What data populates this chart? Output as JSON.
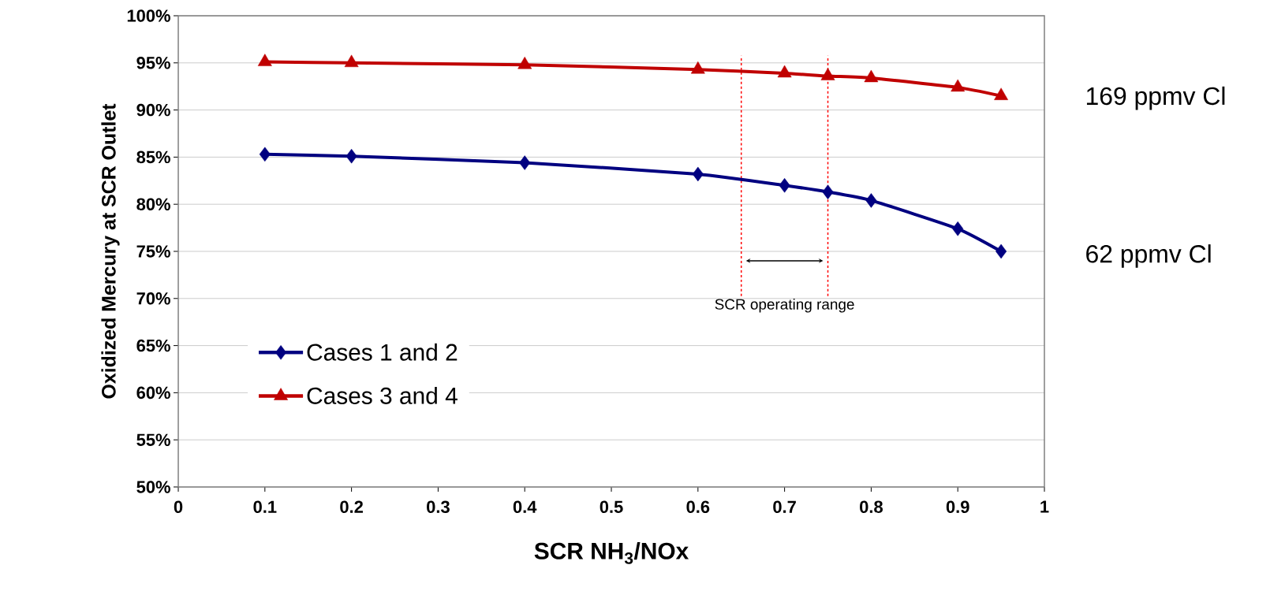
{
  "chart_data": {
    "type": "line",
    "xlabel": "SCR NH$_{3}$/NOx",
    "ylabel": "Oxidized Mercury at SCR Outlet",
    "x": [
      0.1,
      0.2,
      0.4,
      0.6,
      0.7,
      0.75,
      0.8,
      0.9,
      0.95
    ],
    "series": [
      {
        "name": "Cases 1 and 2",
        "color": "#000080",
        "marker": "diamond",
        "values": [
          85.3,
          85.1,
          84.4,
          83.2,
          82.0,
          81.3,
          80.4,
          77.4,
          75.0
        ]
      },
      {
        "name": "Cases 3 and 4",
        "color": "#c00000",
        "marker": "triangle",
        "values": [
          95.1,
          95.0,
          94.8,
          94.3,
          93.9,
          93.6,
          93.4,
          92.4,
          91.5
        ]
      }
    ],
    "xlim": [
      0,
      1
    ],
    "xticks": [
      0,
      0.1,
      0.2,
      0.3,
      0.4,
      0.5,
      0.6,
      0.7,
      0.8,
      0.9,
      1
    ],
    "ylim": [
      50,
      100
    ],
    "yticks": [
      {
        "value": 50,
        "label": "50%"
      },
      {
        "value": 55,
        "label": "55%"
      },
      {
        "value": 60,
        "label": "60%"
      },
      {
        "value": 65,
        "label": "65%"
      },
      {
        "value": 70,
        "label": "70%"
      },
      {
        "value": 75,
        "label": "75%"
      },
      {
        "value": 80,
        "label": "80%"
      },
      {
        "value": 85,
        "label": "85%"
      },
      {
        "value": 90,
        "label": "90%"
      },
      {
        "value": 95,
        "label": "95%"
      },
      {
        "value": 100,
        "label": "100%"
      }
    ],
    "grid": "y",
    "legend": "bottom left",
    "line_style": "solid",
    "ref_lines": [
      {
        "axis": "x",
        "value": 0.65,
        "color": "#ff0000",
        "line_style": "dashed"
      },
      {
        "axis": "x",
        "value": 0.75,
        "color": "#ff0000",
        "line_style": "dashed"
      }
    ],
    "annotations": [
      "169 ppmv Cl",
      "62 ppmv Cl",
      "SCR operating range"
    ]
  }
}
